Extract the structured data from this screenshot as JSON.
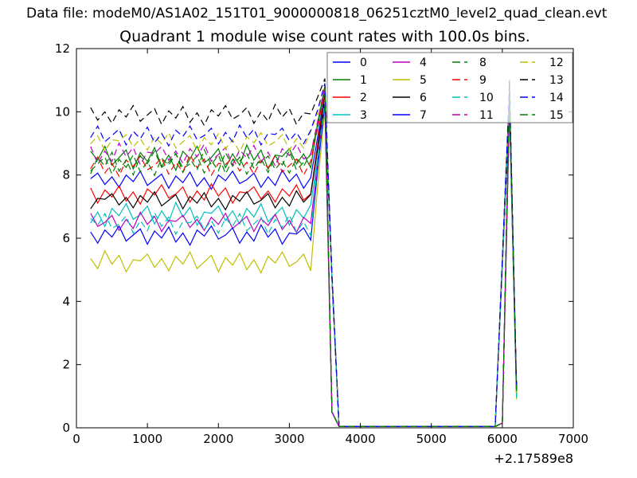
{
  "header": {
    "data_file": "Data file: modeM0/AS1A02_151T01_9000000818_06251cztM0_level2_quad_clean.evt"
  },
  "chart_data": {
    "type": "line",
    "title": "Quadrant 1 module wise count rates with 100.0s bins.",
    "xlabel": "",
    "ylabel": "",
    "xlim": [
      0,
      7000
    ],
    "ylim": [
      0,
      12
    ],
    "xticks": [
      "0",
      "1000",
      "2000",
      "3000",
      "4000",
      "5000",
      "6000",
      "7000"
    ],
    "xtick_values": [
      0,
      1000,
      2000,
      3000,
      4000,
      5000,
      6000,
      7000
    ],
    "yticks": [
      "0",
      "2",
      "4",
      "6",
      "8",
      "10",
      "12"
    ],
    "ytick_values": [
      0,
      2,
      4,
      6,
      8,
      10,
      12
    ],
    "x_offset_label": "+2.17589e8",
    "bin_seconds": "100.0",
    "grid": false,
    "legend": {
      "position": "upper right",
      "ncol": 4,
      "order": "column-major"
    },
    "x_start": 200,
    "x_step": 100,
    "x_end": 6200,
    "plateau_end": 3300,
    "spike1_x": 3500,
    "zero_from": 3700,
    "zero_to": 5900,
    "zero_value": 0.04,
    "spike2_x": 6100,
    "noise_pattern": [
      0.1,
      0.7,
      -0.5,
      0.3,
      -0.8,
      0.5,
      -0.2,
      0.9,
      -0.6,
      0.0,
      0.6,
      -0.9,
      0.4,
      -0.3,
      0.8,
      -0.7,
      0.2,
      -1.0,
      0.5,
      -0.1,
      0.9,
      -0.4,
      0.0,
      0.7,
      -0.8,
      0.3,
      -0.6,
      1.0,
      -0.2,
      0.6,
      -0.9,
      0.2
    ],
    "series": [
      {
        "label": "0",
        "color": "#0000ff",
        "dash": false,
        "base": 7.85,
        "amp": 0.3,
        "peak1": 10.6,
        "peak2": 10.5,
        "end": 1.2,
        "phase": 0
      },
      {
        "label": "1",
        "color": "#007f00",
        "dash": false,
        "base": 8.55,
        "amp": 0.4,
        "peak1": 10.8,
        "peak2": 10.6,
        "end": 1.1,
        "phase": 5
      },
      {
        "label": "2",
        "color": "#ff0000",
        "dash": false,
        "base": 7.4,
        "amp": 0.32,
        "peak1": 10.6,
        "peak2": 10.4,
        "end": 1.3,
        "phase": 10
      },
      {
        "label": "3",
        "color": "#00bfbf",
        "dash": false,
        "base": 6.75,
        "amp": 0.38,
        "peak1": 10.4,
        "peak2": 10.3,
        "end": 0.95,
        "phase": 15
      },
      {
        "label": "4",
        "color": "#bf00bf",
        "dash": false,
        "base": 6.5,
        "amp": 0.32,
        "peak1": 10.4,
        "peak2": 10.2,
        "end": 1.1,
        "phase": 20
      },
      {
        "label": "5",
        "color": "#bfbf00",
        "dash": false,
        "base": 5.25,
        "amp": 0.35,
        "peak1": 10.1,
        "peak2": 10.0,
        "end": 0.9,
        "phase": 25
      },
      {
        "label": "6",
        "color": "#000000",
        "dash": false,
        "base": 7.2,
        "amp": 0.3,
        "peak1": 10.5,
        "peak2": 10.4,
        "end": 1.25,
        "phase": 30
      },
      {
        "label": "7",
        "color": "#0000ff",
        "dash": false,
        "base": 6.1,
        "amp": 0.32,
        "peak1": 10.3,
        "peak2": 10.2,
        "end": 1.0,
        "phase": 3
      },
      {
        "label": "8",
        "color": "#007f00",
        "dash": true,
        "base": 8.35,
        "amp": 0.36,
        "peak1": 10.7,
        "peak2": 10.6,
        "end": 1.15,
        "phase": 8
      },
      {
        "label": "9",
        "color": "#ff0000",
        "dash": true,
        "base": 8.3,
        "amp": 0.34,
        "peak1": 10.7,
        "peak2": 10.5,
        "end": 1.2,
        "phase": 13
      },
      {
        "label": "10",
        "color": "#00bfbf",
        "dash": true,
        "base": 6.45,
        "amp": 0.36,
        "peak1": 10.4,
        "peak2": 10.2,
        "end": 0.95,
        "phase": 18
      },
      {
        "label": "11",
        "color": "#bf00bf",
        "dash": true,
        "base": 8.65,
        "amp": 0.36,
        "peak1": 10.8,
        "peak2": 10.6,
        "end": 1.3,
        "phase": 23
      },
      {
        "label": "12",
        "color": "#bfbf00",
        "dash": true,
        "base": 9.05,
        "amp": 0.32,
        "peak1": 10.9,
        "peak2": 10.7,
        "end": 1.1,
        "phase": 28
      },
      {
        "label": "13",
        "color": "#000000",
        "dash": true,
        "base": 9.9,
        "amp": 0.33,
        "peak1": 11.05,
        "peak2": 11.0,
        "end": 1.25,
        "phase": 1
      },
      {
        "label": "14",
        "color": "#0000ff",
        "dash": true,
        "base": 9.25,
        "amp": 0.33,
        "peak1": 10.9,
        "peak2": 10.8,
        "end": 1.15,
        "phase": 6
      },
      {
        "label": "15",
        "color": "#007f00",
        "dash": true,
        "base": 8.4,
        "amp": 0.4,
        "peak1": 10.75,
        "peak2": 10.6,
        "end": 1.05,
        "phase": 11
      }
    ]
  },
  "colors": {
    "background": "#ffffff",
    "axis": "#000000",
    "legend_border": "#7a7a7a",
    "legend_fill_alpha": "rgba(255,255,255,0.72)"
  }
}
